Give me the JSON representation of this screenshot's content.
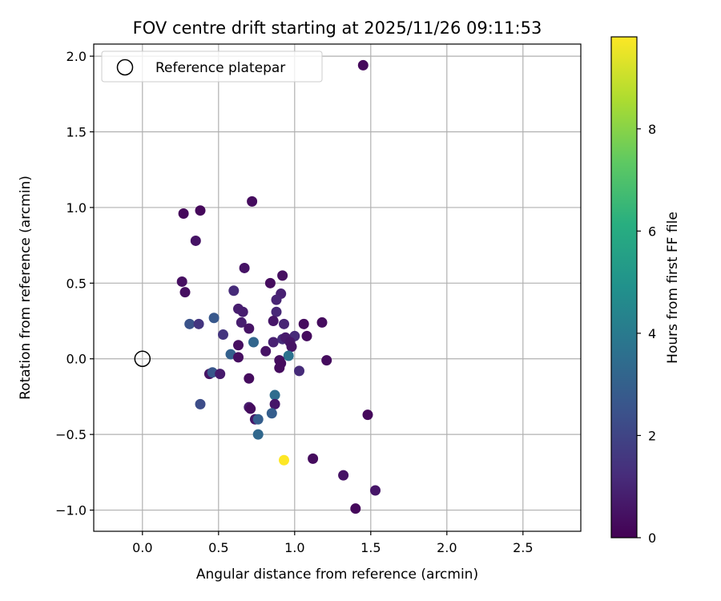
{
  "chart_data": {
    "type": "scatter",
    "title": "FOV centre drift starting at 2025/11/26 09:11:53",
    "xlabel": "Angular distance from reference (arcmin)",
    "ylabel": "Rotation from reference (arcmin)",
    "xlim": [
      -0.32,
      2.88
    ],
    "ylim": [
      -1.14,
      2.08
    ],
    "xticks": [
      0.0,
      0.5,
      1.0,
      1.5,
      2.0,
      2.5
    ],
    "xtick_labels": [
      "0.0",
      "0.5",
      "1.0",
      "1.5",
      "2.0",
      "2.5"
    ],
    "yticks": [
      -1.0,
      -0.5,
      0.0,
      0.5,
      1.0,
      1.5,
      2.0
    ],
    "ytick_labels": [
      "−1.0",
      "−0.5",
      "0.0",
      "0.5",
      "1.0",
      "1.5",
      "2.0"
    ],
    "grid": true,
    "legend": {
      "placement": "upper-left",
      "entries": [
        {
          "label": "Reference platepar",
          "marker": "open-circle"
        }
      ]
    },
    "reference_point": {
      "x": 0.0,
      "y": 0.0
    },
    "colorbar": {
      "label": "Hours from first FF file",
      "min": 0,
      "max": 9.8,
      "ticks": [
        0,
        2,
        4,
        6,
        8
      ],
      "tick_labels": [
        "0",
        "2",
        "4",
        "6",
        "8"
      ],
      "colormap": "viridis"
    },
    "points": [
      {
        "x": 1.45,
        "y": 1.94,
        "c": 0.2
      },
      {
        "x": 0.27,
        "y": 0.96,
        "c": 0.2
      },
      {
        "x": 0.38,
        "y": 0.98,
        "c": 0.2
      },
      {
        "x": 0.72,
        "y": 1.04,
        "c": 0.3
      },
      {
        "x": 0.35,
        "y": 0.78,
        "c": 0.5
      },
      {
        "x": 0.67,
        "y": 0.6,
        "c": 0.5
      },
      {
        "x": 0.26,
        "y": 0.51,
        "c": 0.4
      },
      {
        "x": 0.28,
        "y": 0.44,
        "c": 0.4
      },
      {
        "x": 0.92,
        "y": 0.55,
        "c": 0.4
      },
      {
        "x": 0.84,
        "y": 0.5,
        "c": 0.3
      },
      {
        "x": 0.6,
        "y": 0.45,
        "c": 1.2
      },
      {
        "x": 0.91,
        "y": 0.43,
        "c": 0.9
      },
      {
        "x": 0.88,
        "y": 0.39,
        "c": 1.0
      },
      {
        "x": 0.63,
        "y": 0.33,
        "c": 0.8
      },
      {
        "x": 0.66,
        "y": 0.31,
        "c": 0.8
      },
      {
        "x": 0.88,
        "y": 0.31,
        "c": 1.1
      },
      {
        "x": 0.31,
        "y": 0.23,
        "c": 2.5
      },
      {
        "x": 0.37,
        "y": 0.23,
        "c": 1.5
      },
      {
        "x": 0.47,
        "y": 0.27,
        "c": 2.7
      },
      {
        "x": 0.65,
        "y": 0.24,
        "c": 0.8
      },
      {
        "x": 0.7,
        "y": 0.2,
        "c": 0.5
      },
      {
        "x": 0.53,
        "y": 0.16,
        "c": 1.5
      },
      {
        "x": 0.86,
        "y": 0.25,
        "c": 0.6
      },
      {
        "x": 0.93,
        "y": 0.23,
        "c": 1.0
      },
      {
        "x": 1.06,
        "y": 0.23,
        "c": 0.3
      },
      {
        "x": 1.18,
        "y": 0.24,
        "c": 0.3
      },
      {
        "x": 1.0,
        "y": 0.15,
        "c": 1.2
      },
      {
        "x": 1.08,
        "y": 0.15,
        "c": 0.3
      },
      {
        "x": 0.86,
        "y": 0.11,
        "c": 0.9
      },
      {
        "x": 0.92,
        "y": 0.13,
        "c": 1.2
      },
      {
        "x": 0.94,
        "y": 0.14,
        "c": 0.7
      },
      {
        "x": 0.97,
        "y": 0.11,
        "c": 0.6
      },
      {
        "x": 0.98,
        "y": 0.08,
        "c": 0.5
      },
      {
        "x": 0.73,
        "y": 0.11,
        "c": 3.2
      },
      {
        "x": 0.63,
        "y": 0.09,
        "c": 0.4
      },
      {
        "x": 0.58,
        "y": 0.03,
        "c": 3.0
      },
      {
        "x": 0.63,
        "y": 0.01,
        "c": 0.4
      },
      {
        "x": 0.81,
        "y": 0.05,
        "c": 0.5
      },
      {
        "x": 0.96,
        "y": 0.02,
        "c": 3.7
      },
      {
        "x": 0.9,
        "y": -0.01,
        "c": 0.4
      },
      {
        "x": 0.91,
        "y": -0.03,
        "c": 0.3
      },
      {
        "x": 0.9,
        "y": -0.06,
        "c": 0.3
      },
      {
        "x": 1.21,
        "y": -0.01,
        "c": 0.3
      },
      {
        "x": 1.03,
        "y": -0.08,
        "c": 1.2
      },
      {
        "x": 0.44,
        "y": -0.1,
        "c": 0.5
      },
      {
        "x": 0.46,
        "y": -0.09,
        "c": 2.6
      },
      {
        "x": 0.51,
        "y": -0.1,
        "c": 0.7
      },
      {
        "x": 0.7,
        "y": -0.13,
        "c": 0.3
      },
      {
        "x": 0.87,
        "y": -0.24,
        "c": 3.5
      },
      {
        "x": 0.38,
        "y": -0.3,
        "c": 2.3
      },
      {
        "x": 0.7,
        "y": -0.32,
        "c": 0.8
      },
      {
        "x": 0.71,
        "y": -0.33,
        "c": 0.3
      },
      {
        "x": 0.87,
        "y": -0.3,
        "c": 0.6
      },
      {
        "x": 0.85,
        "y": -0.36,
        "c": 2.9
      },
      {
        "x": 0.74,
        "y": -0.4,
        "c": 0.6
      },
      {
        "x": 0.76,
        "y": -0.4,
        "c": 2.9
      },
      {
        "x": 1.48,
        "y": -0.37,
        "c": 0.2
      },
      {
        "x": 0.76,
        "y": -0.5,
        "c": 3.3
      },
      {
        "x": 0.93,
        "y": -0.67,
        "c": 9.8
      },
      {
        "x": 1.12,
        "y": -0.66,
        "c": 0.3
      },
      {
        "x": 1.32,
        "y": -0.77,
        "c": 0.5
      },
      {
        "x": 1.53,
        "y": -0.87,
        "c": 0.6
      },
      {
        "x": 1.4,
        "y": -0.99,
        "c": 0.2
      }
    ]
  }
}
